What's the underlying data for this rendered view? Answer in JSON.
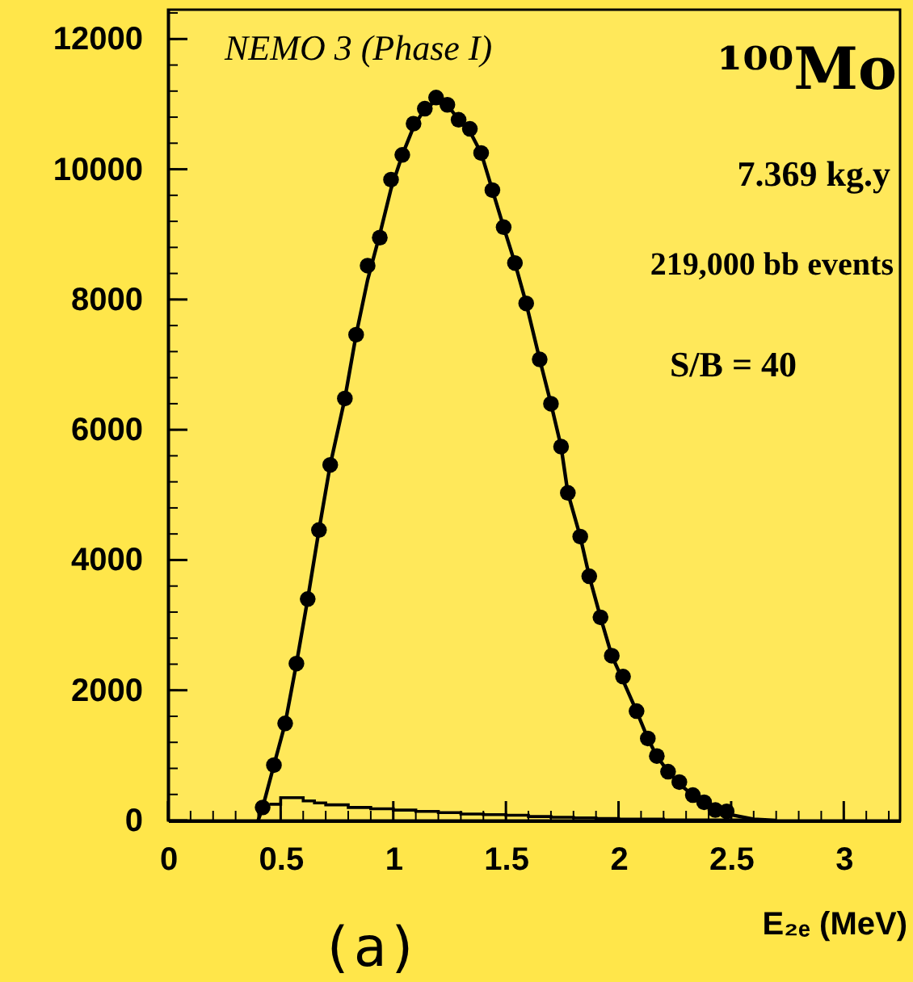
{
  "chart_data": {
    "type": "scatter",
    "xlabel": "E₂ₑ (MeV)",
    "xlim": [
      0,
      3.25
    ],
    "xticks": [
      0,
      0.5,
      1,
      1.5,
      2,
      2.5,
      3
    ],
    "ylim": [
      0,
      12450
    ],
    "yticks": [
      0,
      2000,
      4000,
      6000,
      8000,
      10000,
      12000
    ],
    "grid": false,
    "annotations": [
      "NEMO 3 (Phase I)",
      "¹⁰⁰Mo",
      "7.369 kg.y",
      "219,000 bb events",
      "S/B = 40",
      "(a)"
    ],
    "series": [
      {
        "type": "step",
        "color": "#000000",
        "x": [
          0.45,
          0.5,
          0.55,
          0.6,
          0.65,
          0.7,
          0.8,
          0.9,
          1.0,
          1.1,
          1.2,
          1.3,
          1.4,
          1.5,
          1.6,
          1.7,
          1.8,
          1.9,
          2.0,
          2.1,
          2.2,
          2.4,
          2.6
        ],
        "values": [
          250,
          350,
          350,
          300,
          270,
          240,
          200,
          180,
          160,
          140,
          120,
          100,
          90,
          80,
          60,
          50,
          40,
          30,
          20,
          20,
          10,
          10,
          0
        ]
      },
      {
        "type": "line",
        "color": "#000000",
        "marker": "none",
        "line_style": "solid",
        "x": [
          0.4,
          0.42,
          0.47,
          0.52,
          0.57,
          0.62,
          0.67,
          0.72,
          0.785,
          0.835,
          0.886,
          0.94,
          0.99,
          1.04,
          1.09,
          1.14,
          1.19,
          1.24,
          1.29,
          1.34,
          1.39,
          1.44,
          1.49,
          1.54,
          1.59,
          1.65,
          1.7,
          1.745,
          1.775,
          1.83,
          1.87,
          1.92,
          1.97,
          2.02,
          2.08,
          2.13,
          2.17,
          2.22,
          2.27,
          2.33,
          2.38,
          2.43,
          2.48,
          2.6,
          2.7
        ],
        "values": [
          0,
          200,
          850,
          1490,
          2410,
          3400,
          4460,
          5460,
          6480,
          7460,
          8300,
          9000,
          9700,
          10220,
          10650,
          10930,
          11050,
          10990,
          10760,
          10580,
          10250,
          9680,
          9110,
          8560,
          7940,
          7080,
          6400,
          5740,
          5030,
          4360,
          3750,
          3120,
          2530,
          2150,
          1680,
          1260,
          990,
          750,
          560,
          390,
          260,
          160,
          100,
          20,
          0
        ]
      },
      {
        "color": "#000000",
        "marker": "circle",
        "x": [
          0.42,
          0.47,
          0.52,
          0.57,
          0.62,
          0.67,
          0.72,
          0.785,
          0.835,
          0.886,
          0.94,
          0.99,
          1.04,
          1.09,
          1.14,
          1.19,
          1.24,
          1.29,
          1.34,
          1.39,
          1.44,
          1.49,
          1.54,
          1.59,
          1.65,
          1.7,
          1.745,
          1.775,
          1.83,
          1.87,
          1.92,
          1.97,
          2.02,
          2.08,
          2.13,
          2.17,
          2.22,
          2.27,
          2.33,
          2.38,
          2.43,
          2.48
        ],
        "values": [
          200,
          850,
          1490,
          2410,
          3400,
          4460,
          5460,
          6480,
          7460,
          8520,
          8950,
          9840,
          10220,
          10700,
          10930,
          11100,
          10990,
          10760,
          10620,
          10250,
          9680,
          9110,
          8560,
          7940,
          7080,
          6400,
          5740,
          5030,
          4360,
          3750,
          3120,
          2530,
          2210,
          1680,
          1260,
          990,
          750,
          590,
          390,
          280,
          160,
          140
        ]
      }
    ]
  }
}
